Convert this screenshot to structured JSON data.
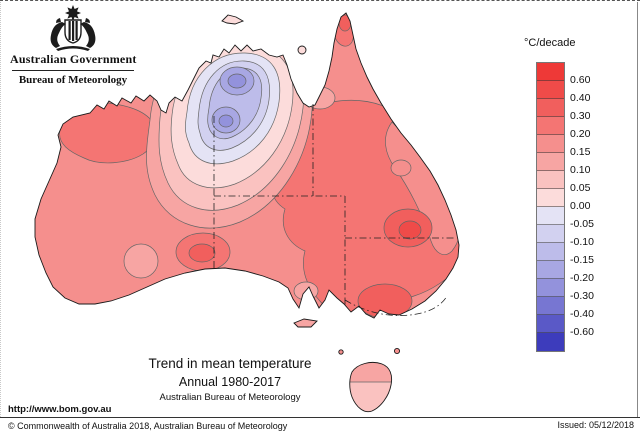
{
  "header": {
    "gov_label": "Australian Government",
    "bureau_label": "Bureau of Meteorology"
  },
  "legend": {
    "title": "°C/decade",
    "labels": [
      "0.60",
      "0.40",
      "0.30",
      "0.20",
      "0.15",
      "0.10",
      "0.05",
      "0.00",
      "-0.05",
      "-0.10",
      "-0.15",
      "-0.20",
      "-0.30",
      "-0.40",
      "-0.60"
    ],
    "colors": [
      "#ee3937",
      "#ef4b49",
      "#f15f5d",
      "#f47573",
      "#f58f8d",
      "#f7a5a3",
      "#fac2c0",
      "#fcdcdb",
      "#e4e3f5",
      "#d2d1f0",
      "#bdbcea",
      "#a8a7e3",
      "#9392dc",
      "#7776d2",
      "#5a59c7",
      "#3d3cbc"
    ]
  },
  "titles": {
    "line1": "Trend in mean temperature",
    "line2": "Annual 1980-2017",
    "line3": "Australian Bureau of Meteorology"
  },
  "footer": {
    "url": "http://www.bom.gov.au",
    "copyright": "© Commonwealth of Australia 2018, Australian Bureau of Meteorology",
    "issued": "Issued: 05/12/2018"
  },
  "chart_data": {
    "type": "heatmap",
    "title": "Trend in mean temperature",
    "subtitle": "Annual 1980-2017",
    "units": "°C/decade",
    "legend_levels": [
      0.6,
      0.4,
      0.3,
      0.2,
      0.15,
      0.1,
      0.05,
      0.0,
      -0.05,
      -0.1,
      -0.15,
      -0.2,
      -0.3,
      -0.4,
      -0.6
    ],
    "legend_position": "right",
    "region_trends": {
      "most_of_mainland": "+0.15 to +0.30 warming",
      "top_end_northern_territory": "-0.05 to -0.25 cooling, two cooling cores near the Top End",
      "kimberley_northwest": "+0.20 to +0.30",
      "inland_nsw_qld_border": "+0.30 to +0.60 warming cores",
      "inland_victoria_nsw_southeast": "+0.30 to +0.40",
      "wa_sa_border_south": "+0.30 to +0.40 core",
      "cape_york_tip": "+0.30 to +0.40",
      "east_coast_strip": "+0.10 to +0.20",
      "south_australia_gulf_coasts": "+0.10 to +0.15",
      "tasmania": "+0.05 to +0.15"
    }
  }
}
